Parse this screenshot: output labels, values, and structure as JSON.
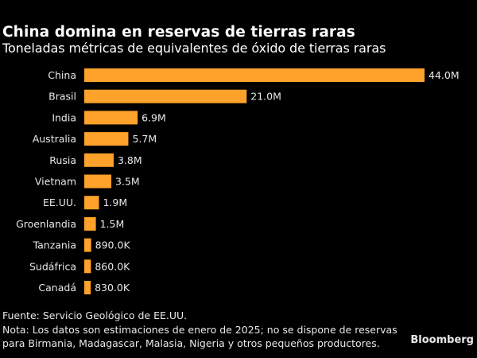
{
  "chart_data": {
    "type": "bar",
    "orientation": "horizontal",
    "title": "China domina en reservas de tierras raras",
    "subtitle": "Toneladas métricas de equivalentes de óxido de tierras raras",
    "categories": [
      "China",
      "Brasil",
      "India",
      "Australia",
      "Rusia",
      "Vietnam",
      "EE.UU.",
      "Groenlandia",
      "Tanzania",
      "Sudáfrica",
      "Canadá"
    ],
    "values": [
      44000000,
      21000000,
      6900000,
      5700000,
      3800000,
      3500000,
      1900000,
      1500000,
      890000,
      860000,
      830000
    ],
    "value_labels": [
      "44.0M",
      "21.0M",
      "6.9M",
      "5.7M",
      "3.8M",
      "3.5M",
      "1.9M",
      "1.5M",
      "890.0K",
      "860.0K",
      "830.0K"
    ],
    "xlabel": "",
    "ylabel": "",
    "xlim": [
      0,
      44000000
    ],
    "grid": false,
    "bar_color": "#FFA22B",
    "background": "#000000"
  },
  "footer": {
    "source": "Fuente: Servicio Geológico de EE.UU.",
    "note_line1": "Nota: Los datos son estimaciones de enero de 2025; no se dispone de reservas",
    "note_line2": "para Birmania, Madagascar, Malasia, Nigeria y otros pequeños productores."
  },
  "brand": "Bloomberg"
}
